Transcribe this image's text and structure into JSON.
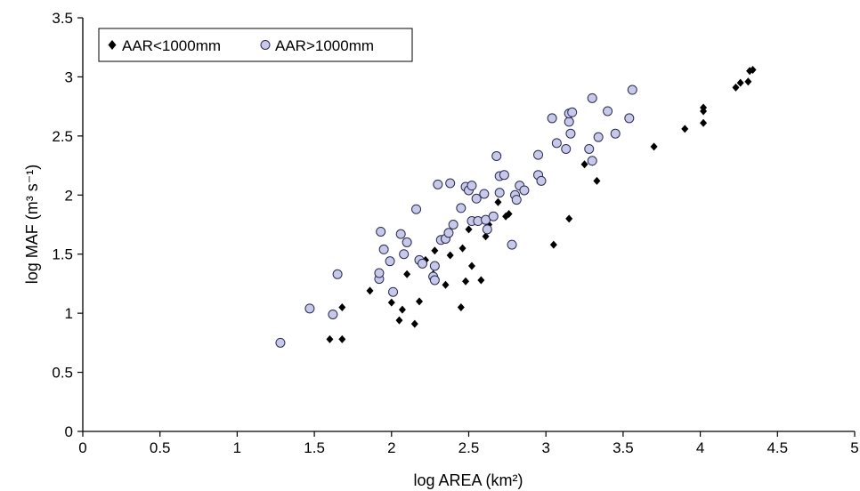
{
  "chart_data": {
    "type": "scatter",
    "xlabel": "log AREA (km²)",
    "ylabel": "log MAF (m³ s⁻¹)",
    "xlim": [
      0,
      5
    ],
    "ylim": [
      0,
      3.5
    ],
    "x_ticks": [
      "0",
      "0.5",
      "1",
      "1.5",
      "2",
      "2.5",
      "3",
      "3.5",
      "4",
      "4.5",
      "5"
    ],
    "y_ticks": [
      "0",
      "0.5",
      "1",
      "1.5",
      "2",
      "2.5",
      "3",
      "3.5"
    ],
    "grid": false,
    "legend_position": "top-left",
    "series": [
      {
        "name": "AAR<1000mm",
        "marker": "diamond",
        "color": "#000000",
        "points": [
          [
            1.6,
            0.78
          ],
          [
            1.68,
            0.78
          ],
          [
            1.68,
            1.05
          ],
          [
            1.86,
            1.19
          ],
          [
            2.0,
            1.09
          ],
          [
            2.05,
            0.94
          ],
          [
            2.07,
            1.03
          ],
          [
            2.1,
            1.33
          ],
          [
            2.15,
            0.91
          ],
          [
            2.18,
            1.1
          ],
          [
            2.22,
            1.45
          ],
          [
            2.27,
            1.33
          ],
          [
            2.28,
            1.53
          ],
          [
            2.35,
            1.24
          ],
          [
            2.38,
            1.49
          ],
          [
            2.45,
            1.05
          ],
          [
            2.46,
            1.55
          ],
          [
            2.48,
            1.27
          ],
          [
            2.5,
            1.71
          ],
          [
            2.52,
            1.4
          ],
          [
            2.58,
            1.28
          ],
          [
            2.61,
            1.65
          ],
          [
            2.63,
            1.75
          ],
          [
            2.69,
            1.94
          ],
          [
            2.74,
            1.82
          ],
          [
            2.76,
            1.84
          ],
          [
            3.05,
            1.58
          ],
          [
            3.15,
            1.8
          ],
          [
            3.25,
            2.26
          ],
          [
            3.3,
            2.28
          ],
          [
            3.33,
            2.12
          ],
          [
            3.7,
            2.41
          ],
          [
            3.9,
            2.56
          ],
          [
            4.02,
            2.61
          ],
          [
            4.02,
            2.71
          ],
          [
            4.02,
            2.74
          ],
          [
            4.23,
            2.91
          ],
          [
            4.26,
            2.95
          ],
          [
            4.31,
            2.96
          ],
          [
            4.32,
            3.05
          ],
          [
            4.34,
            3.06
          ]
        ]
      },
      {
        "name": "AAR>1000mm",
        "marker": "circle",
        "color": "#c8c8e8",
        "points": [
          [
            1.28,
            0.75
          ],
          [
            1.47,
            1.04
          ],
          [
            1.62,
            0.99
          ],
          [
            1.65,
            1.33
          ],
          [
            1.92,
            1.29
          ],
          [
            1.92,
            1.34
          ],
          [
            1.93,
            1.69
          ],
          [
            1.95,
            1.54
          ],
          [
            1.99,
            1.44
          ],
          [
            2.01,
            1.18
          ],
          [
            2.06,
            1.67
          ],
          [
            2.08,
            1.5
          ],
          [
            2.1,
            1.6
          ],
          [
            2.16,
            1.88
          ],
          [
            2.18,
            1.45
          ],
          [
            2.2,
            1.42
          ],
          [
            2.27,
            1.31
          ],
          [
            2.28,
            1.4
          ],
          [
            2.28,
            1.28
          ],
          [
            2.3,
            2.09
          ],
          [
            2.32,
            1.62
          ],
          [
            2.35,
            1.63
          ],
          [
            2.37,
            1.68
          ],
          [
            2.38,
            2.1
          ],
          [
            2.4,
            1.75
          ],
          [
            2.45,
            1.89
          ],
          [
            2.48,
            2.07
          ],
          [
            2.5,
            2.04
          ],
          [
            2.52,
            2.08
          ],
          [
            2.52,
            1.78
          ],
          [
            2.55,
            1.97
          ],
          [
            2.56,
            1.78
          ],
          [
            2.6,
            2.01
          ],
          [
            2.61,
            1.79
          ],
          [
            2.62,
            1.71
          ],
          [
            2.66,
            1.82
          ],
          [
            2.68,
            2.33
          ],
          [
            2.7,
            2.16
          ],
          [
            2.7,
            2.02
          ],
          [
            2.73,
            2.17
          ],
          [
            2.78,
            1.58
          ],
          [
            2.8,
            2.0
          ],
          [
            2.81,
            1.96
          ],
          [
            2.83,
            2.08
          ],
          [
            2.86,
            2.04
          ],
          [
            2.95,
            2.17
          ],
          [
            2.95,
            2.34
          ],
          [
            2.97,
            2.12
          ],
          [
            3.04,
            2.65
          ],
          [
            3.07,
            2.44
          ],
          [
            3.13,
            2.39
          ],
          [
            3.15,
            2.62
          ],
          [
            3.15,
            2.69
          ],
          [
            3.16,
            2.52
          ],
          [
            3.17,
            2.7
          ],
          [
            3.28,
            2.39
          ],
          [
            3.3,
            2.82
          ],
          [
            3.3,
            2.29
          ],
          [
            3.34,
            2.49
          ],
          [
            3.4,
            2.71
          ],
          [
            3.45,
            2.52
          ],
          [
            3.54,
            2.65
          ],
          [
            3.56,
            2.89
          ]
        ]
      }
    ]
  }
}
